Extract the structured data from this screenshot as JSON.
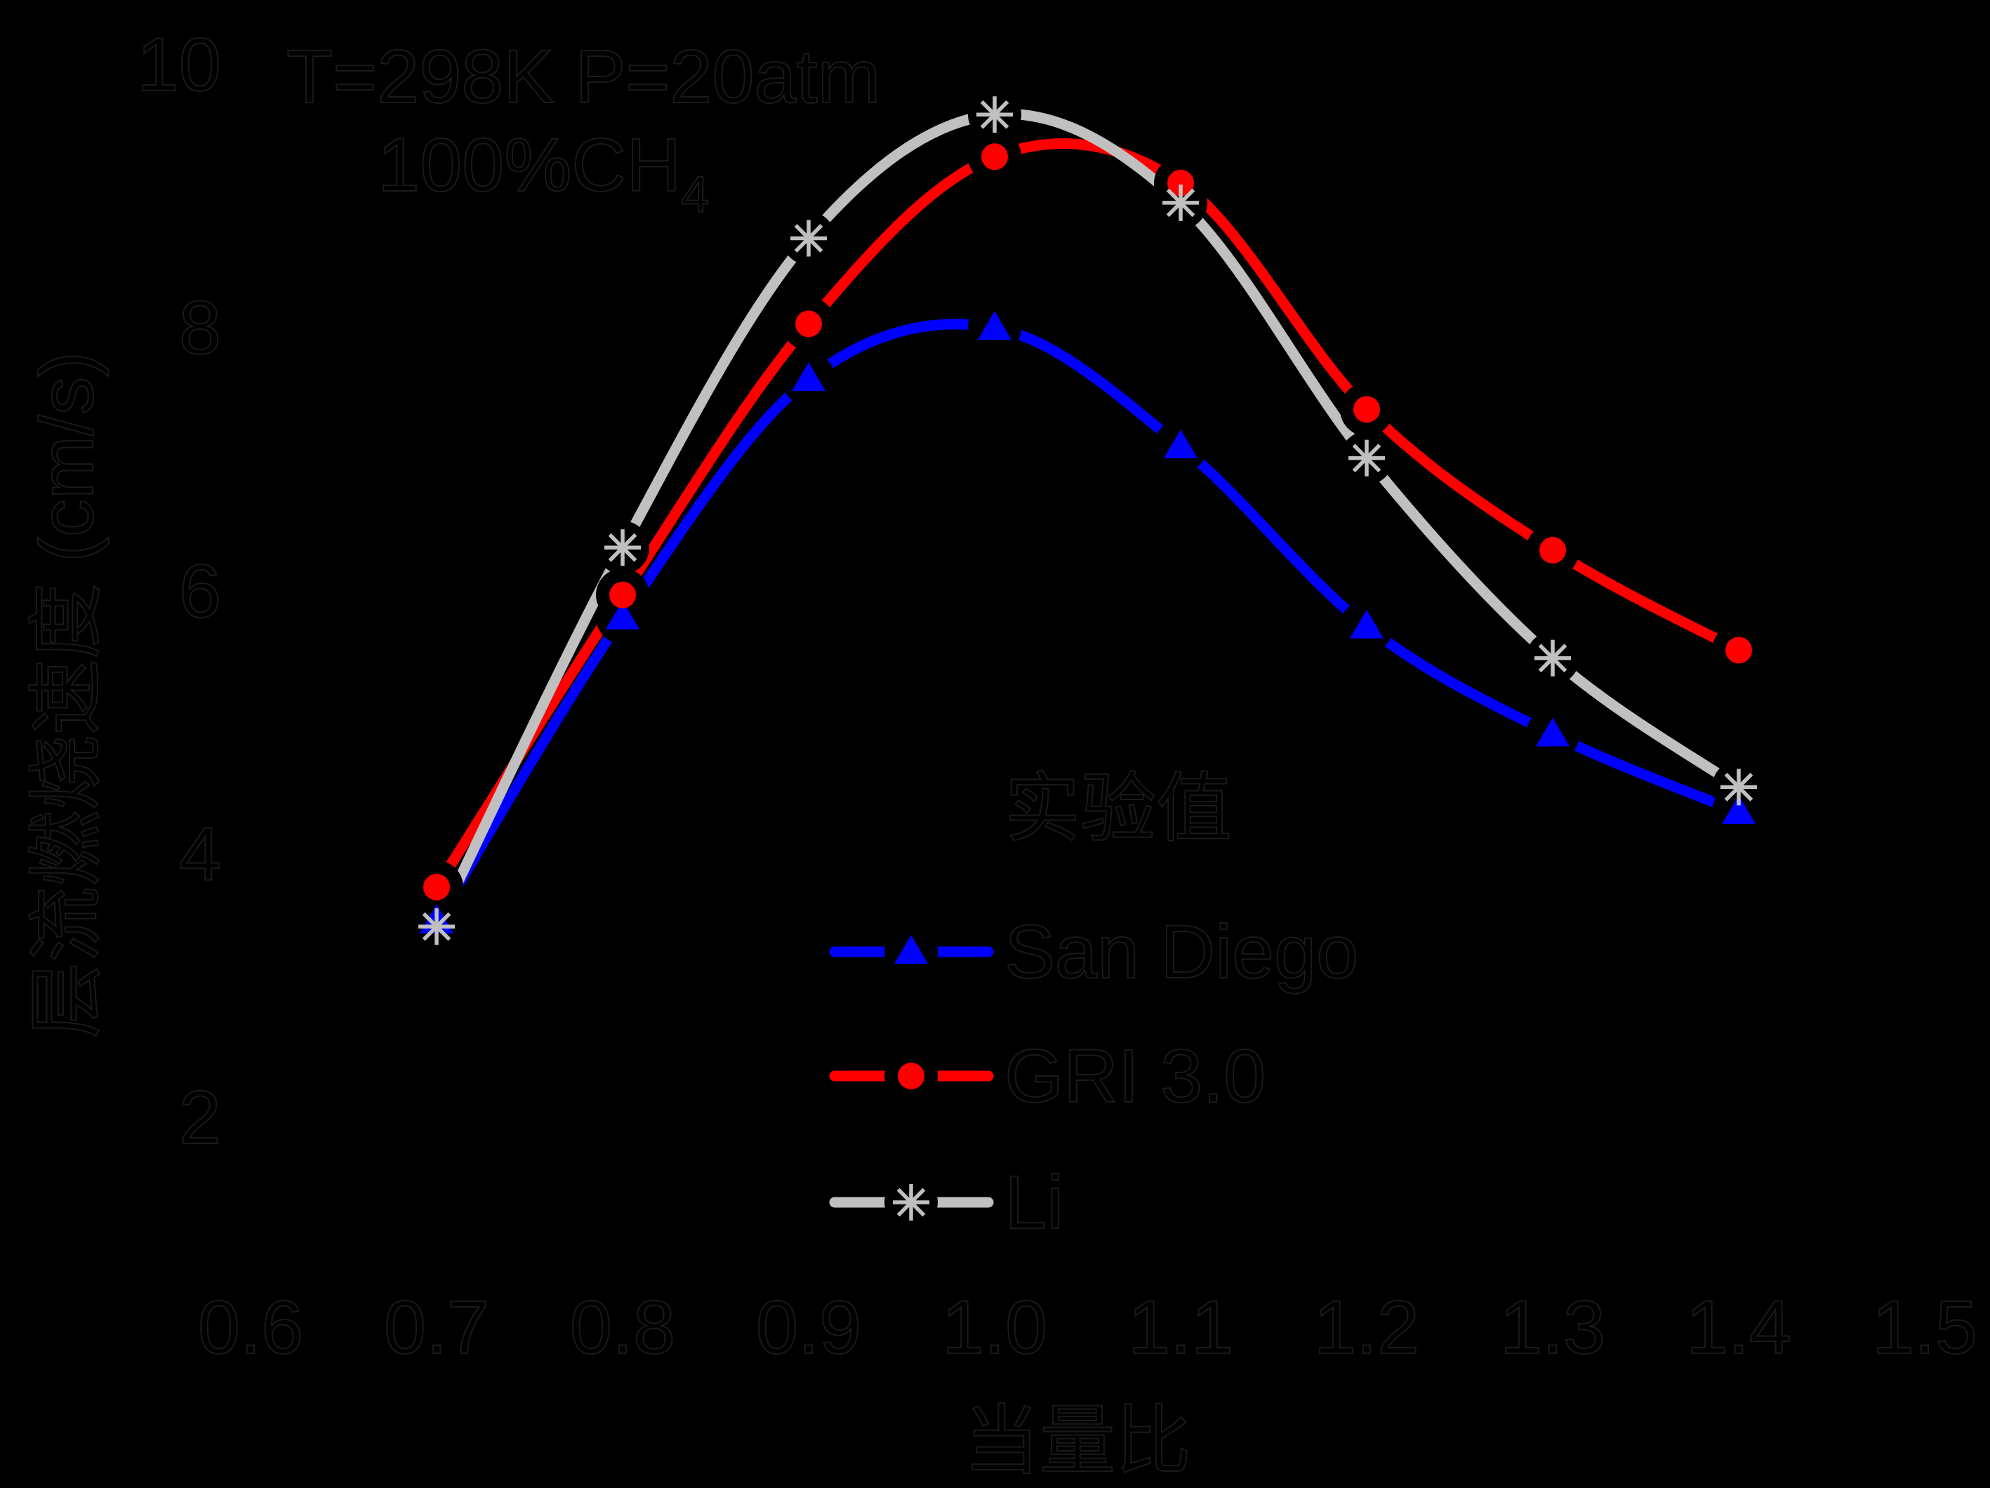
{
  "title": {
    "line1": "T=298K P=20atm",
    "line2_main": "100%CH",
    "line2_sub": "4"
  },
  "axes": {
    "x": {
      "label": "当量比",
      "tick_labels": [
        "0.6",
        "0.7",
        "0.8",
        "0.9",
        "1.0",
        "1.1",
        "1.2",
        "1.3",
        "1.4",
        "1.5"
      ]
    },
    "y": {
      "label": "层流燃烧速度 (cm/s)",
      "tick_labels": [
        "10",
        "8",
        "6",
        "4",
        "2"
      ]
    }
  },
  "legend": {
    "header": "实验值",
    "entries": [
      {
        "label": "San Diego",
        "color": "#0000ff",
        "marker": "triangle"
      },
      {
        "label": "GRI 3.0",
        "color": "#ff0000",
        "marker": "circle"
      },
      {
        "label": "Li",
        "color": "#c0c0c0",
        "marker": "asterisk"
      }
    ]
  },
  "chart_data": {
    "type": "line",
    "title": "T=298K P=20atm 100%CH4",
    "xlabel": "当量比",
    "ylabel": "层流燃烧速度 (cm/s)",
    "x": [
      0.7,
      0.8,
      0.9,
      1.0,
      1.1,
      1.2,
      1.3,
      1.4
    ],
    "series": [
      {
        "name": "San Diego",
        "color": "#0000ff",
        "marker": "triangle",
        "values": [
          3.49,
          5.8,
          7.61,
          8.0,
          7.1,
          5.73,
          4.91,
          4.32
        ]
      },
      {
        "name": "GRI 3.0",
        "color": "#ff0000",
        "marker": "circle",
        "values": [
          3.75,
          5.97,
          8.03,
          9.3,
          9.1,
          7.38,
          6.31,
          5.55
        ]
      },
      {
        "name": "Li",
        "color": "#c0c0c0",
        "marker": "asterisk",
        "values": [
          3.45,
          6.33,
          8.68,
          9.62,
          8.95,
          7.01,
          5.49,
          4.51
        ]
      }
    ],
    "x_ticks": [
      0.6,
      0.7,
      0.8,
      0.9,
      1.0,
      1.1,
      1.2,
      1.3,
      1.4,
      1.5
    ],
    "y_ticks": [
      2,
      4,
      6,
      8,
      10
    ],
    "xlim": [
      0.55,
      1.55
    ],
    "ylim": [
      1.0,
      10.5
    ],
    "grid": false,
    "legend_position": "center-right",
    "line_style": "smooth-spline-with-symbol-gaps",
    "background": "#000000",
    "text_color": "#000000"
  }
}
